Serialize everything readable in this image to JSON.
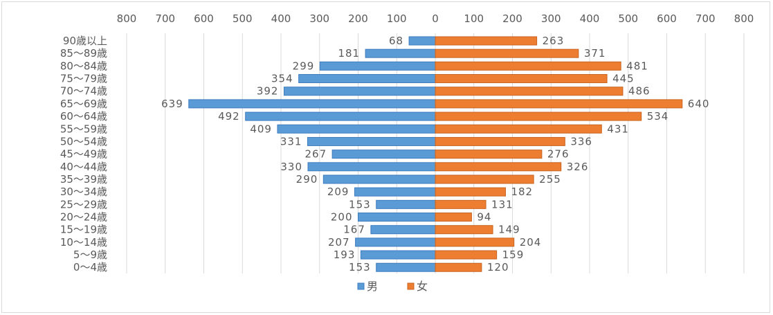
{
  "chart_data": {
    "type": "bar",
    "orientation": "horizontal",
    "layout": "population-pyramid",
    "categories": [
      "90歳以上",
      "85～89歳",
      "80～84歳",
      "75～79歳",
      "70～74歳",
      "65～69歳",
      "60～64歳",
      "55～59歳",
      "50～54歳",
      "45～49歳",
      "40～44歳",
      "35～39歳",
      "30～34歳",
      "25～29歳",
      "20～24歳",
      "15～19歳",
      "10～14歳",
      "5～9歳",
      "0～4歳"
    ],
    "series": [
      {
        "name": "男",
        "color": "#5b9bd5",
        "side": "left",
        "values": [
          68,
          181,
          299,
          354,
          392,
          639,
          492,
          409,
          331,
          267,
          330,
          290,
          209,
          153,
          200,
          167,
          207,
          193,
          153
        ]
      },
      {
        "name": "女",
        "color": "#ed7d31",
        "side": "right",
        "values": [
          263,
          371,
          481,
          445,
          486,
          640,
          534,
          431,
          336,
          276,
          326,
          255,
          182,
          131,
          94,
          149,
          204,
          159,
          120
        ]
      }
    ],
    "x_ticks": [
      "800",
      "700",
      "600",
      "500",
      "400",
      "300",
      "200",
      "100",
      "0",
      "100",
      "200",
      "300",
      "400",
      "500",
      "600",
      "700",
      "800"
    ],
    "xlim": [
      -800,
      800
    ],
    "grid": true,
    "legend": "bottom"
  }
}
